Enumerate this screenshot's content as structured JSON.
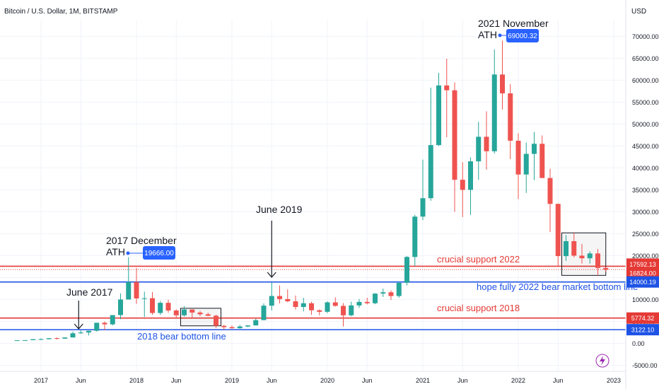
{
  "header": {
    "symbol_title": "Bitcoin / U.S. Dollar, 1M, BITSTAMP"
  },
  "colors": {
    "up": "#26a69a",
    "down": "#ef5350",
    "red_line": "#e53935",
    "blue_line": "#1e53e5",
    "axis_text": "#131722",
    "note_blue": "#1e53e5",
    "note_red": "#e53935",
    "tag_blue": "#2962ff"
  },
  "axes": {
    "currency_label": "USD",
    "y_ticks": [
      "70000.00",
      "65000.00",
      "60000.00",
      "55000.00",
      "50000.00",
      "45000.00",
      "40000.00",
      "35000.00",
      "30000.00",
      "25000.00",
      "20000.00",
      "15000.00",
      "10000.00",
      "5000.00",
      "0.00",
      "-5000.00"
    ],
    "x_ticks": [
      "2017",
      "Jun",
      "2018",
      "Jun",
      "2019",
      "Jun",
      "2020",
      "Jun",
      "2021",
      "Jun",
      "2022",
      "Jun",
      "2023"
    ]
  },
  "price_labels": [
    {
      "text": "17592.13",
      "value": 17592.13,
      "color": "#e53935"
    },
    {
      "text": "16824.00",
      "value": 16824.0,
      "color": "#e53935"
    },
    {
      "text": "14000.19",
      "value": 14000.19,
      "color": "#1e53e5"
    },
    {
      "text": "5774.32",
      "value": 5774.32,
      "color": "#e53935"
    },
    {
      "text": "3122.10",
      "value": 3122.1,
      "color": "#1e53e5"
    }
  ],
  "annotations": {
    "ath_2021_line1": "2021 November",
    "ath_2021_line2": "ATH",
    "ath_2021_value": "69000.32",
    "ath_2017_line1": "2017 December",
    "ath_2017_line2": "ATH",
    "ath_2017_value": "19666.00",
    "june_2019": "June 2019",
    "june_2017": "June 2017",
    "support_2022": "crucial support 2022",
    "bottom_2022": "hope fully 2022 bear market bottom line",
    "support_2018": "crucial support 2018",
    "bottom_2018": "2018 bear bottom line"
  },
  "chart_data": {
    "type": "candlestick",
    "title": "Bitcoin / U.S. Dollar, 1M, BITSTAMP",
    "ylabel": "USD",
    "ylim": [
      -7000,
      74000
    ],
    "x_range": [
      "2016-10",
      "2023-01"
    ],
    "horizontal_levels": [
      17592.13,
      16824.0,
      14000.19,
      5774.32,
      3122.1
    ],
    "candles": [
      {
        "t": "2016-10",
        "o": 610,
        "h": 720,
        "l": 600,
        "c": 700
      },
      {
        "t": "2016-11",
        "o": 700,
        "h": 750,
        "l": 690,
        "c": 740
      },
      {
        "t": "2016-12",
        "o": 740,
        "h": 970,
        "l": 740,
        "c": 960
      },
      {
        "t": "2017-01",
        "o": 960,
        "h": 1150,
        "l": 750,
        "c": 970
      },
      {
        "t": "2017-02",
        "o": 970,
        "h": 1200,
        "l": 920,
        "c": 1190
      },
      {
        "t": "2017-03",
        "o": 1190,
        "h": 1350,
        "l": 890,
        "c": 1080
      },
      {
        "t": "2017-04",
        "o": 1080,
        "h": 1400,
        "l": 1060,
        "c": 1350
      },
      {
        "t": "2017-05",
        "o": 1350,
        "h": 2700,
        "l": 1340,
        "c": 2300
      },
      {
        "t": "2017-06",
        "o": 2300,
        "h": 3000,
        "l": 2200,
        "c": 2480
      },
      {
        "t": "2017-07",
        "o": 2480,
        "h": 2900,
        "l": 1800,
        "c": 2870
      },
      {
        "t": "2017-08",
        "o": 2870,
        "h": 4700,
        "l": 2700,
        "c": 4700
      },
      {
        "t": "2017-09",
        "o": 4700,
        "h": 5000,
        "l": 3000,
        "c": 4340
      },
      {
        "t": "2017-10",
        "o": 4340,
        "h": 6400,
        "l": 4100,
        "c": 6450
      },
      {
        "t": "2017-11",
        "o": 6450,
        "h": 11400,
        "l": 5500,
        "c": 10000
      },
      {
        "t": "2017-12",
        "o": 10000,
        "h": 19666,
        "l": 10000,
        "c": 14000
      },
      {
        "t": "2018-01",
        "o": 14000,
        "h": 17200,
        "l": 9000,
        "c": 10250
      },
      {
        "t": "2018-02",
        "o": 10250,
        "h": 11800,
        "l": 6000,
        "c": 10300
      },
      {
        "t": "2018-03",
        "o": 10300,
        "h": 11700,
        "l": 6500,
        "c": 6930
      },
      {
        "t": "2018-04",
        "o": 6930,
        "h": 9700,
        "l": 6500,
        "c": 9250
      },
      {
        "t": "2018-05",
        "o": 9250,
        "h": 9950,
        "l": 7000,
        "c": 7500
      },
      {
        "t": "2018-06",
        "o": 7500,
        "h": 7750,
        "l": 5800,
        "c": 6400
      },
      {
        "t": "2018-07",
        "o": 6400,
        "h": 8500,
        "l": 6100,
        "c": 7730
      },
      {
        "t": "2018-08",
        "o": 7730,
        "h": 7750,
        "l": 5900,
        "c": 7030
      },
      {
        "t": "2018-09",
        "o": 7030,
        "h": 7400,
        "l": 6200,
        "c": 6630
      },
      {
        "t": "2018-10",
        "o": 6630,
        "h": 7000,
        "l": 6200,
        "c": 6300
      },
      {
        "t": "2018-11",
        "o": 6300,
        "h": 6550,
        "l": 3500,
        "c": 4000
      },
      {
        "t": "2018-12",
        "o": 4000,
        "h": 4200,
        "l": 3122,
        "c": 3700
      },
      {
        "t": "2019-01",
        "o": 3700,
        "h": 4100,
        "l": 3350,
        "c": 3450
      },
      {
        "t": "2019-02",
        "o": 3450,
        "h": 4200,
        "l": 3350,
        "c": 3850
      },
      {
        "t": "2019-03",
        "o": 3850,
        "h": 4150,
        "l": 3700,
        "c": 4100
      },
      {
        "t": "2019-04",
        "o": 4100,
        "h": 5600,
        "l": 4050,
        "c": 5300
      },
      {
        "t": "2019-05",
        "o": 5300,
        "h": 9100,
        "l": 5300,
        "c": 8600
      },
      {
        "t": "2019-06",
        "o": 8600,
        "h": 13900,
        "l": 7500,
        "c": 10800
      },
      {
        "t": "2019-07",
        "o": 10800,
        "h": 13200,
        "l": 9100,
        "c": 10100
      },
      {
        "t": "2019-08",
        "o": 10100,
        "h": 12300,
        "l": 9400,
        "c": 9600
      },
      {
        "t": "2019-09",
        "o": 9600,
        "h": 10900,
        "l": 7700,
        "c": 8300
      },
      {
        "t": "2019-10",
        "o": 8300,
        "h": 10400,
        "l": 7300,
        "c": 9150
      },
      {
        "t": "2019-11",
        "o": 9150,
        "h": 9500,
        "l": 6500,
        "c": 7550
      },
      {
        "t": "2019-12",
        "o": 7550,
        "h": 7750,
        "l": 6400,
        "c": 7200
      },
      {
        "t": "2020-01",
        "o": 7200,
        "h": 9600,
        "l": 6900,
        "c": 9350
      },
      {
        "t": "2020-02",
        "o": 9350,
        "h": 10500,
        "l": 8400,
        "c": 8550
      },
      {
        "t": "2020-03",
        "o": 8550,
        "h": 9200,
        "l": 3850,
        "c": 6400
      },
      {
        "t": "2020-04",
        "o": 6400,
        "h": 9500,
        "l": 6150,
        "c": 8650
      },
      {
        "t": "2020-05",
        "o": 8650,
        "h": 10100,
        "l": 8100,
        "c": 9450
      },
      {
        "t": "2020-06",
        "o": 9450,
        "h": 10400,
        "l": 8900,
        "c": 9150
      },
      {
        "t": "2020-07",
        "o": 9150,
        "h": 11450,
        "l": 8950,
        "c": 11350
      },
      {
        "t": "2020-08",
        "o": 11350,
        "h": 12500,
        "l": 10600,
        "c": 11650
      },
      {
        "t": "2020-09",
        "o": 11650,
        "h": 12100,
        "l": 9900,
        "c": 10800
      },
      {
        "t": "2020-10",
        "o": 10800,
        "h": 14100,
        "l": 10400,
        "c": 13800
      },
      {
        "t": "2020-11",
        "o": 13800,
        "h": 19900,
        "l": 13200,
        "c": 19700
      },
      {
        "t": "2020-12",
        "o": 19700,
        "h": 29300,
        "l": 17600,
        "c": 28900
      },
      {
        "t": "2021-01",
        "o": 28900,
        "h": 41900,
        "l": 28100,
        "c": 33100
      },
      {
        "t": "2021-02",
        "o": 33100,
        "h": 58300,
        "l": 32500,
        "c": 45200
      },
      {
        "t": "2021-03",
        "o": 45200,
        "h": 61700,
        "l": 45000,
        "c": 58800
      },
      {
        "t": "2021-04",
        "o": 58800,
        "h": 64900,
        "l": 47000,
        "c": 57700
      },
      {
        "t": "2021-05",
        "o": 57700,
        "h": 59500,
        "l": 30000,
        "c": 37300
      },
      {
        "t": "2021-06",
        "o": 37300,
        "h": 41300,
        "l": 28800,
        "c": 35000
      },
      {
        "t": "2021-07",
        "o": 35000,
        "h": 42400,
        "l": 29300,
        "c": 41500
      },
      {
        "t": "2021-08",
        "o": 41500,
        "h": 50500,
        "l": 37300,
        "c": 47100
      },
      {
        "t": "2021-09",
        "o": 47100,
        "h": 52900,
        "l": 39600,
        "c": 43800
      },
      {
        "t": "2021-10",
        "o": 43800,
        "h": 67000,
        "l": 43300,
        "c": 61300
      },
      {
        "t": "2021-11",
        "o": 61300,
        "h": 69000,
        "l": 53300,
        "c": 57000
      },
      {
        "t": "2021-12",
        "o": 57000,
        "h": 59100,
        "l": 42000,
        "c": 46200
      },
      {
        "t": "2022-01",
        "o": 46200,
        "h": 47900,
        "l": 32900,
        "c": 38500
      },
      {
        "t": "2022-02",
        "o": 38500,
        "h": 45800,
        "l": 34300,
        "c": 43200
      },
      {
        "t": "2022-03",
        "o": 43200,
        "h": 48200,
        "l": 37200,
        "c": 45500
      },
      {
        "t": "2022-04",
        "o": 45500,
        "h": 47400,
        "l": 37700,
        "c": 37700
      },
      {
        "t": "2022-05",
        "o": 37700,
        "h": 39800,
        "l": 25400,
        "c": 31800
      },
      {
        "t": "2022-06",
        "o": 31800,
        "h": 31900,
        "l": 17600,
        "c": 19900
      },
      {
        "t": "2022-07",
        "o": 19900,
        "h": 24700,
        "l": 18800,
        "c": 23300
      },
      {
        "t": "2022-08",
        "o": 23300,
        "h": 25200,
        "l": 19600,
        "c": 20000
      },
      {
        "t": "2022-09",
        "o": 20000,
        "h": 22700,
        "l": 18200,
        "c": 19400
      },
      {
        "t": "2022-10",
        "o": 19400,
        "h": 21000,
        "l": 18200,
        "c": 20500
      },
      {
        "t": "2022-11",
        "o": 20500,
        "h": 21500,
        "l": 15500,
        "c": 17200
      },
      {
        "t": "2022-12",
        "o": 17200,
        "h": 17500,
        "l": 16300,
        "c": 16800
      }
    ]
  }
}
